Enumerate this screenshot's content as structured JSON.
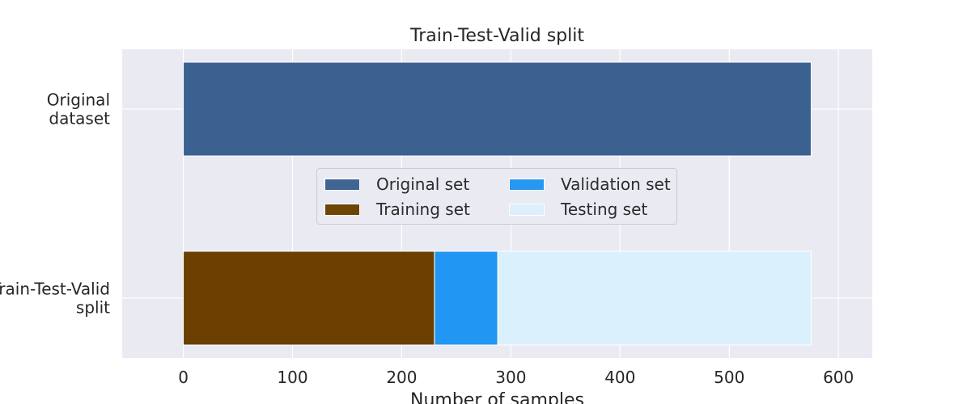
{
  "chart_data": {
    "type": "bar",
    "orientation": "horizontal",
    "stacked": true,
    "title": "Train-Test-Valid split",
    "xlabel": "Number of samples",
    "ylabel": "",
    "xlim": [
      -56,
      631
    ],
    "xticks": [
      0,
      100,
      200,
      300,
      400,
      500,
      600
    ],
    "categories": [
      {
        "label_lines": [
          "Original",
          "dataset"
        ]
      },
      {
        "label_lines": [
          "Train-Test-Valid",
          "split"
        ]
      }
    ],
    "series": [
      {
        "name": "Original set",
        "color": "#3b6190",
        "segments": [
          {
            "category": 0,
            "start": 0,
            "value": 575
          }
        ]
      },
      {
        "name": "Training set",
        "color": "#6a3f00",
        "segments": [
          {
            "category": 1,
            "start": 0,
            "value": 230
          }
        ]
      },
      {
        "name": "Validation set",
        "color": "#2196f3",
        "segments": [
          {
            "category": 1,
            "start": 230,
            "value": 58
          }
        ]
      },
      {
        "name": "Testing set",
        "color": "#dbf0fd",
        "segments": [
          {
            "category": 1,
            "start": 288,
            "value": 287
          }
        ]
      }
    ],
    "grid": true,
    "legend_position": "center",
    "legend_columns": 2
  },
  "colors": {
    "plot_background": "#eaeaf2",
    "grid": "#ffffff",
    "text": "#262626"
  }
}
